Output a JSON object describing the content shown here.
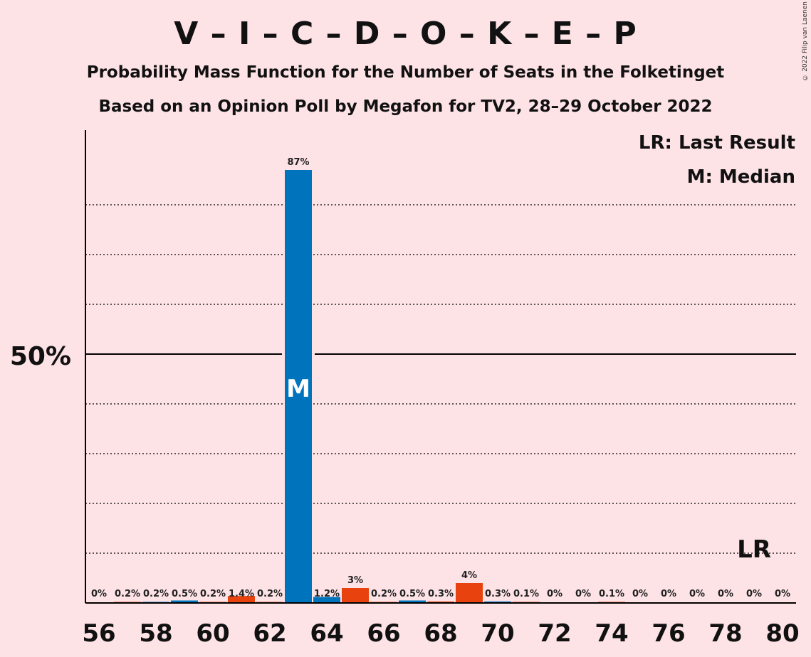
{
  "title": "V – I – C – D – O – K – E – P",
  "subtitle1": "Probability Mass Function for the Number of Seats in the Folketinget",
  "subtitle2": "Based on an Opinion Poll by Megafon for TV2, 28–29 October 2022",
  "copyright": "© 2022 Filip van Laenen",
  "legend": {
    "lr": "LR: Last Result",
    "median": "M: Median"
  },
  "colors": {
    "background": "#fde2e6",
    "blue": "#0073bd",
    "orange": "#e8420f",
    "axis": "#000000"
  },
  "chart_data": {
    "type": "bar",
    "x": [
      56,
      57,
      58,
      59,
      60,
      61,
      62,
      63,
      64,
      65,
      66,
      67,
      68,
      69,
      70,
      71,
      72,
      73,
      74,
      75,
      76,
      77,
      78,
      79,
      80
    ],
    "values": [
      0,
      0.2,
      0.2,
      0.5,
      0.2,
      1.4,
      0.2,
      87,
      1.2,
      3,
      0.2,
      0.5,
      0.3,
      4,
      0.3,
      0.1,
      0,
      0,
      0.1,
      0,
      0,
      0,
      0,
      0,
      0
    ],
    "labels": [
      "0%",
      "0.2%",
      "0.2%",
      "0.5%",
      "0.2%",
      "1.4%",
      "0.2%",
      "87%",
      "1.2%",
      "3%",
      "0.2%",
      "0.5%",
      "0.3%",
      "4%",
      "0.3%",
      "0.1%",
      "0%",
      "0%",
      "0.1%",
      "0%",
      "0%",
      "0%",
      "0%",
      "0%",
      "0%"
    ],
    "bar_colors": [
      "blue",
      "orange",
      "blue",
      "blue",
      "orange",
      "orange",
      "orange",
      "blue",
      "blue",
      "orange",
      "orange",
      "blue",
      "orange",
      "orange",
      "blue",
      "orange",
      "orange",
      "orange",
      "orange",
      "orange",
      "orange",
      "orange",
      "orange",
      "orange",
      "orange"
    ],
    "x_tick_labels": [
      "56",
      "58",
      "60",
      "62",
      "64",
      "66",
      "68",
      "70",
      "72",
      "74",
      "76",
      "78",
      "80"
    ],
    "y_tick_label": "50%",
    "ylim": [
      0,
      95
    ],
    "gridlines": [
      10,
      20,
      30,
      40,
      60,
      70,
      80
    ],
    "median_x": 63,
    "median_label": "M",
    "last_result_x": 79,
    "last_result_label": "LR"
  }
}
